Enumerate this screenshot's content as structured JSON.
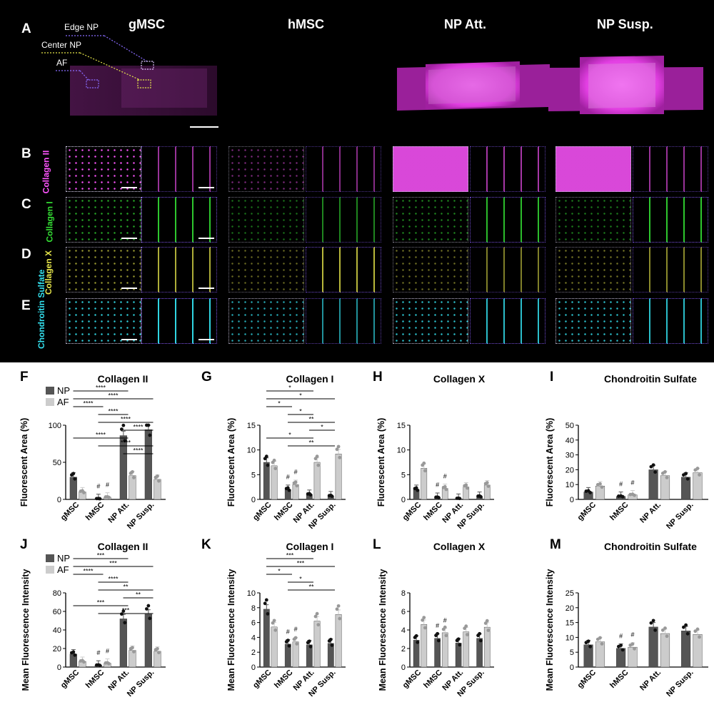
{
  "figure": {
    "panel_letters": [
      "A",
      "B",
      "C",
      "D",
      "E",
      "F",
      "G",
      "H",
      "I",
      "J",
      "K",
      "L",
      "M"
    ],
    "column_titles": [
      "gMSC",
      "hMSC",
      "NP Att.",
      "NP Susp."
    ],
    "region_labels": [
      "Edge NP",
      "Center NP",
      "AF"
    ],
    "stains": [
      {
        "name": "Collagen II",
        "color": "#ff55ff"
      },
      {
        "name": "Collagen I",
        "color": "#33dd33"
      },
      {
        "name": "Collagen X",
        "color": "#e6e64a"
      },
      {
        "name": "Chondroitin Sulfate",
        "color": "#33e0ee"
      }
    ],
    "legend": {
      "np_label": "NP",
      "af_label": "AF",
      "np_color": "#555555",
      "af_color": "#cccccc"
    }
  },
  "chart_data": [
    {
      "panel": "F",
      "type": "bar",
      "title": "Collagen II",
      "ylabel": "Fluorescent Area (%)",
      "ylim": [
        0,
        100
      ],
      "yticks": [
        0,
        50,
        100
      ],
      "categories": [
        "gMSC",
        "hMSC",
        "NP Att.",
        "NP Susp."
      ],
      "series": [
        {
          "name": "NP",
          "values": [
            30,
            1,
            86,
            94
          ]
        },
        {
          "name": "AF",
          "values": [
            10,
            3,
            32,
            27
          ]
        }
      ],
      "hash_marks": [
        "hMSC-NP",
        "hMSC-AF"
      ],
      "significance": [
        "****",
        "****",
        "****",
        "****",
        "****",
        "****",
        "****",
        "****",
        "****"
      ]
    },
    {
      "panel": "G",
      "type": "bar",
      "title": "Collagen I",
      "ylabel": "Fluorescent Area (%)",
      "ylim": [
        0,
        15
      ],
      "yticks": [
        0,
        5,
        10,
        15
      ],
      "categories": [
        "gMSC",
        "hMSC",
        "NP Att.",
        "NP Susp."
      ],
      "series": [
        {
          "name": "NP",
          "values": [
            7.5,
            2.0,
            1.0,
            0.7
          ]
        },
        {
          "name": "AF",
          "values": [
            6.8,
            3.0,
            7.5,
            9.2
          ]
        }
      ],
      "hash_marks": [
        "hMSC-NP",
        "hMSC-AF"
      ],
      "significance": [
        "*",
        "*",
        "*",
        "*",
        "**",
        "*",
        "*",
        "**"
      ]
    },
    {
      "panel": "H",
      "type": "bar",
      "title": "Collagen X",
      "ylabel": "Fluorescent Area (%)",
      "ylim": [
        0,
        15
      ],
      "yticks": [
        0,
        5,
        10,
        15
      ],
      "categories": [
        "gMSC",
        "hMSC",
        "NP Att.",
        "NP Susp."
      ],
      "series": [
        {
          "name": "NP",
          "values": [
            2.0,
            0.4,
            0.2,
            0.6
          ]
        },
        {
          "name": "AF",
          "values": [
            6.3,
            2.2,
            2.5,
            2.9
          ]
        }
      ],
      "hash_marks": [
        "hMSC-NP",
        "hMSC-AF"
      ],
      "significance": []
    },
    {
      "panel": "I",
      "type": "bar",
      "title": "Chondroitin Sulfate",
      "ylabel": "Fluorescent Area (%)",
      "ylim": [
        0,
        50
      ],
      "yticks": [
        0,
        10,
        20,
        30,
        40,
        50
      ],
      "categories": [
        "gMSC",
        "hMSC",
        "NP Att.",
        "NP Susp."
      ],
      "series": [
        {
          "name": "NP",
          "values": [
            5,
            2,
            20,
            15
          ]
        },
        {
          "name": "AF",
          "values": [
            9,
            3,
            16,
            18
          ]
        }
      ],
      "hash_marks": [
        "hMSC-NP",
        "hMSC-AF"
      ],
      "significance": []
    },
    {
      "panel": "J",
      "type": "bar",
      "title": "Collagen II",
      "ylabel": "Mean Fluorescence Intensity",
      "ylim": [
        0,
        80
      ],
      "yticks": [
        0,
        20,
        40,
        60,
        80
      ],
      "categories": [
        "gMSC",
        "hMSC",
        "NP Att.",
        "NP Susp."
      ],
      "series": [
        {
          "name": "NP",
          "values": [
            14,
            2,
            52,
            57
          ]
        },
        {
          "name": "AF",
          "values": [
            6,
            4,
            18,
            17
          ]
        }
      ],
      "hash_marks": [
        "hMSC-NP",
        "hMSC-AF"
      ],
      "significance": [
        "***",
        "***",
        "****",
        "****",
        "**",
        "**",
        "***",
        "***"
      ]
    },
    {
      "panel": "K",
      "type": "bar",
      "title": "Collagen I",
      "ylabel": "Mean Fluorescence Intensity",
      "ylim": [
        0,
        10
      ],
      "yticks": [
        0,
        2,
        4,
        6,
        8,
        10
      ],
      "categories": [
        "gMSC",
        "hMSC",
        "NP Att.",
        "NP Susp."
      ],
      "series": [
        {
          "name": "NP",
          "values": [
            7.8,
            3.1,
            3.0,
            3.2
          ]
        },
        {
          "name": "AF",
          "values": [
            5.4,
            3.4,
            6.2,
            7.1
          ]
        }
      ],
      "hash_marks": [
        "hMSC-NP",
        "hMSC-AF"
      ],
      "significance": [
        "***",
        "***",
        "*",
        "*",
        "**"
      ]
    },
    {
      "panel": "L",
      "type": "bar",
      "title": "Collagen X",
      "ylabel": "Mean Fluorescence Intensity",
      "ylim": [
        0,
        8
      ],
      "yticks": [
        0,
        2,
        4,
        6,
        8
      ],
      "categories": [
        "gMSC",
        "hMSC",
        "NP Att.",
        "NP Susp."
      ],
      "series": [
        {
          "name": "NP",
          "values": [
            2.9,
            3.1,
            2.6,
            3.1
          ]
        },
        {
          "name": "AF",
          "values": [
            4.6,
            3.7,
            3.8,
            4.3
          ]
        }
      ],
      "hash_marks": [
        "hMSC-NP",
        "hMSC-AF"
      ],
      "significance": []
    },
    {
      "panel": "M",
      "type": "bar",
      "title": "Chondroitin Sulfate",
      "ylabel": "Mean Fluorescence Intensity",
      "ylim": [
        0,
        25
      ],
      "yticks": [
        0,
        5,
        10,
        15,
        20,
        25
      ],
      "categories": [
        "gMSC",
        "hMSC",
        "NP Att.",
        "NP Susp."
      ],
      "series": [
        {
          "name": "NP",
          "values": [
            7.5,
            6.3,
            13.5,
            12.2
          ]
        },
        {
          "name": "AF",
          "values": [
            8.5,
            6.7,
            11.3,
            11.0
          ]
        }
      ],
      "hash_marks": [
        "hMSC-NP",
        "hMSC-AF"
      ],
      "significance": []
    }
  ]
}
